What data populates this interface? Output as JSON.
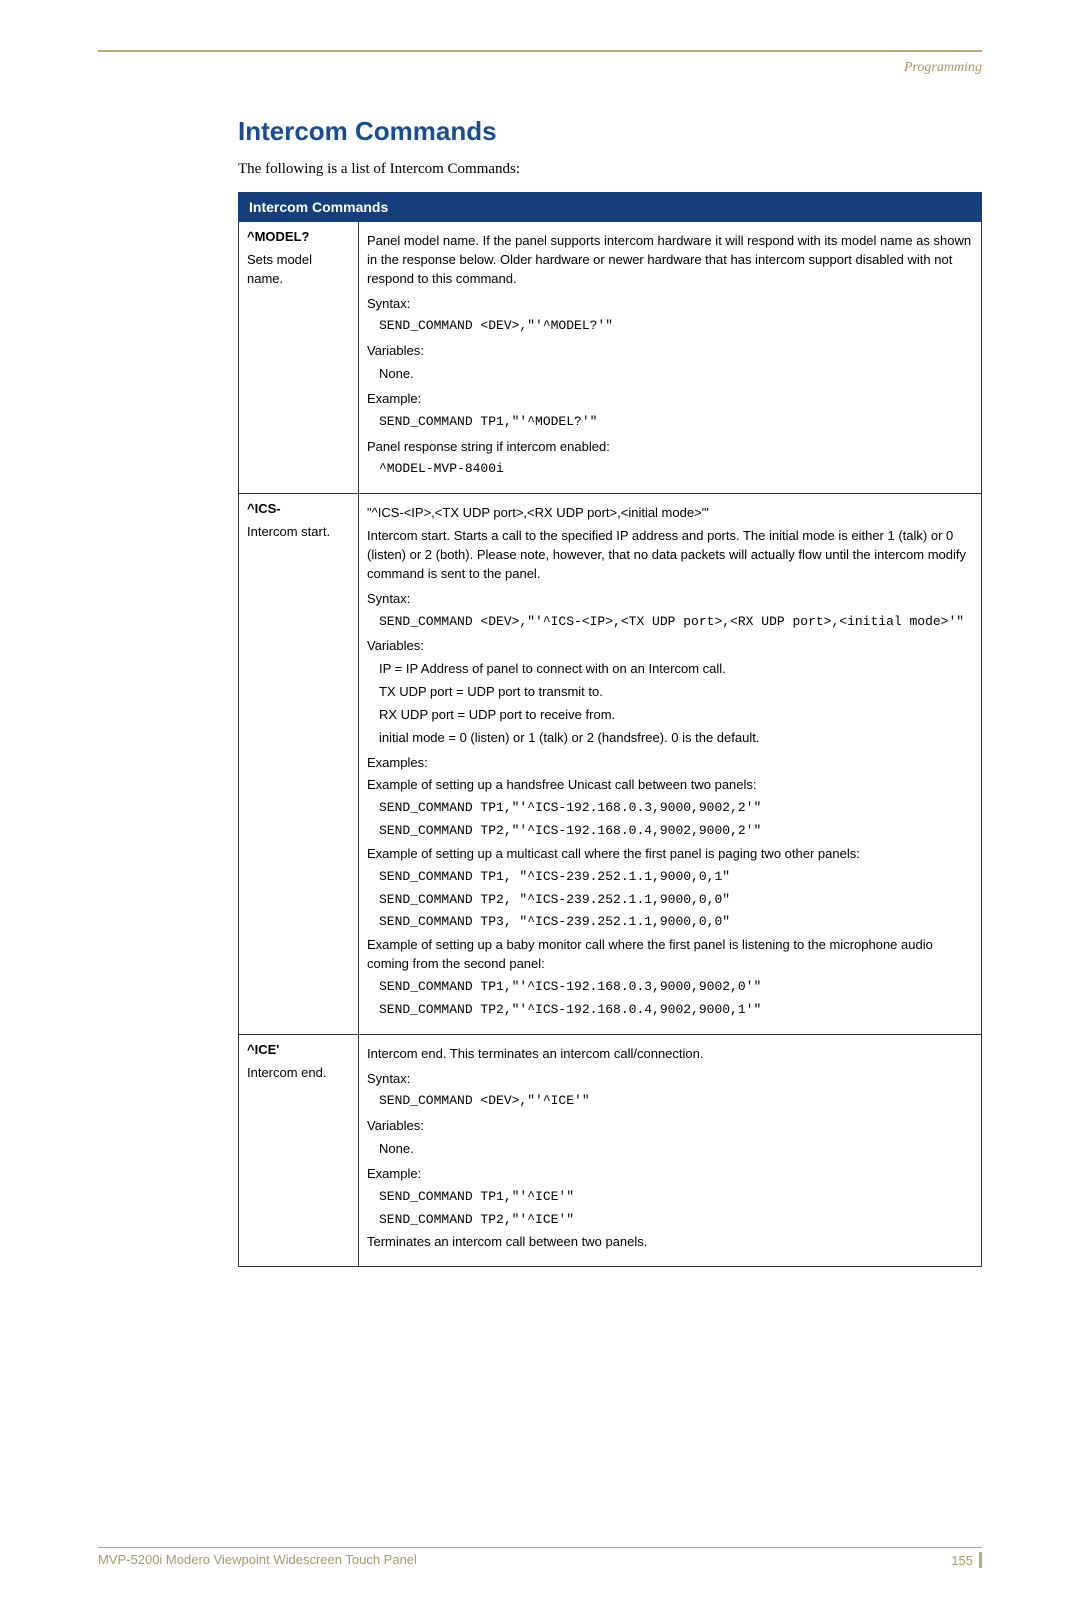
{
  "section_label": "Programming",
  "title": "Intercom Commands",
  "intro": "The following is a list of Intercom Commands:",
  "table_header": "Intercom Commands",
  "rows": [
    {
      "cmd": "^MODEL?",
      "cmd_sub": "Sets model name.",
      "desc": "Panel model name.  If the panel supports intercom hardware it will respond with its model name as shown in the response below.  Older hardware or newer hardware that has intercom support disabled with not respond to this command.",
      "syntax_label": "Syntax:",
      "syntax": "SEND_COMMAND <DEV>,\"'^MODEL?'\"",
      "vars_label": "Variables:",
      "vars": "None.",
      "ex_label": "Example:",
      "ex1": "SEND_COMMAND TP1,\"'^MODEL?'\"",
      "resp_label": "Panel response string if intercom enabled:",
      "resp": "^MODEL-MVP-8400i"
    },
    {
      "cmd": "^ICS-",
      "cmd_sub": "Intercom start.",
      "sig": "\"^ICS-<IP>,<TX UDP port>,<RX UDP port>,<initial mode>'\"",
      "desc": "Intercom start. Starts a call to the specified IP address and ports. The initial mode is either 1 (talk) or 0 (listen) or 2 (both).  Please note, however, that no data packets will actually flow until the intercom modify command is sent to the panel.",
      "syntax_label": "Syntax:",
      "syntax": "SEND_COMMAND <DEV>,\"'^ICS-<IP>,<TX UDP port>,<RX UDP port>,<initial mode>'\"",
      "vars_label": "Variables:",
      "var1": "IP = IP Address of panel to connect with on an Intercom call.",
      "var2": "TX UDP port = UDP port to transmit to.",
      "var3": "RX UDP port = UDP port to receive from.",
      "var4": "initial mode = 0 (listen) or 1 (talk) or 2 (handsfree).  0 is the default.",
      "ex_label": "Examples:",
      "exA_label": "Example of setting up a handsfree Unicast call between two panels:",
      "exA1": "SEND_COMMAND TP1,\"'^ICS-192.168.0.3,9000,9002,2'\"",
      "exA2": "SEND_COMMAND TP2,\"'^ICS-192.168.0.4,9002,9000,2'\"",
      "exB_label": "Example of setting up a multicast call where the first panel is paging two other panels:",
      "exB1": "SEND_COMMAND TP1, \"^ICS-239.252.1.1,9000,0,1\"",
      "exB2": "SEND_COMMAND TP2, \"^ICS-239.252.1.1,9000,0,0\"",
      "exB3": "SEND_COMMAND TP3, \"^ICS-239.252.1.1,9000,0,0\"",
      "exC_label": "Example of setting up a baby monitor call where the first panel is listening to the microphone audio coming from the second panel:",
      "exC1": "SEND_COMMAND TP1,\"'^ICS-192.168.0.3,9000,9002,0'\"",
      "exC2": "SEND_COMMAND TP2,\"'^ICS-192.168.0.4,9002,9000,1'\""
    },
    {
      "cmd": "^ICE'",
      "cmd_sub": "Intercom end.",
      "desc": "Intercom end. This terminates an intercom call/connection.",
      "syntax_label": "Syntax:",
      "syntax": "SEND_COMMAND <DEV>,\"'^ICE'\"",
      "vars_label": "Variables:",
      "vars": "None.",
      "ex_label": "Example:",
      "ex1": "SEND_COMMAND TP1,\"'^ICE'\"",
      "ex2": "SEND_COMMAND TP2,\"'^ICE'\"",
      "tail": "Terminates an intercom call between two panels."
    }
  ],
  "footer_left": "MVP-5200i Modero Viewpoint Widescreen Touch Panel",
  "footer_page": "155"
}
